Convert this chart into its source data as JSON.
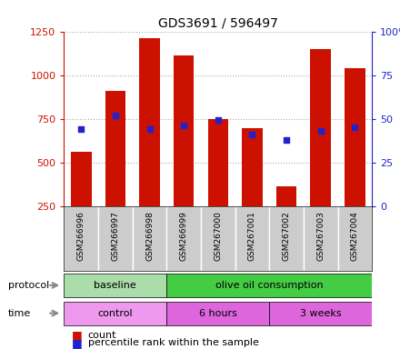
{
  "title": "GDS3691 / 596497",
  "samples": [
    "GSM266996",
    "GSM266997",
    "GSM266998",
    "GSM266999",
    "GSM267000",
    "GSM267001",
    "GSM267002",
    "GSM267003",
    "GSM267004"
  ],
  "counts": [
    560,
    910,
    1210,
    1110,
    750,
    695,
    360,
    1150,
    1040
  ],
  "percentile_ranks": [
    44,
    52,
    44,
    46,
    49,
    41,
    38,
    43,
    45
  ],
  "ylim_left": [
    250,
    1250
  ],
  "ylim_right": [
    0,
    100
  ],
  "yticks_left": [
    250,
    500,
    750,
    1000,
    1250
  ],
  "yticks_right": [
    0,
    25,
    50,
    75,
    100
  ],
  "bar_color": "#cc1100",
  "dot_color": "#2222cc",
  "protocol_groups": [
    {
      "label": "baseline",
      "start": 0,
      "end": 3,
      "color": "#aaddaa"
    },
    {
      "label": "olive oil consumption",
      "start": 3,
      "end": 9,
      "color": "#44cc44"
    }
  ],
  "time_groups": [
    {
      "label": "control",
      "start": 0,
      "end": 3,
      "color": "#ee99ee"
    },
    {
      "label": "6 hours",
      "start": 3,
      "end": 6,
      "color": "#dd66dd"
    },
    {
      "label": "3 weeks",
      "start": 6,
      "end": 9,
      "color": "#dd66dd"
    }
  ],
  "legend_count_label": "count",
  "legend_pct_label": "percentile rank within the sample",
  "protocol_label": "protocol",
  "time_label": "time",
  "left_axis_color": "#cc1100",
  "right_axis_color": "#2222cc",
  "grid_color": "#aaaaaa",
  "bg_color": "#ffffff",
  "tick_label_area_color": "#cccccc"
}
